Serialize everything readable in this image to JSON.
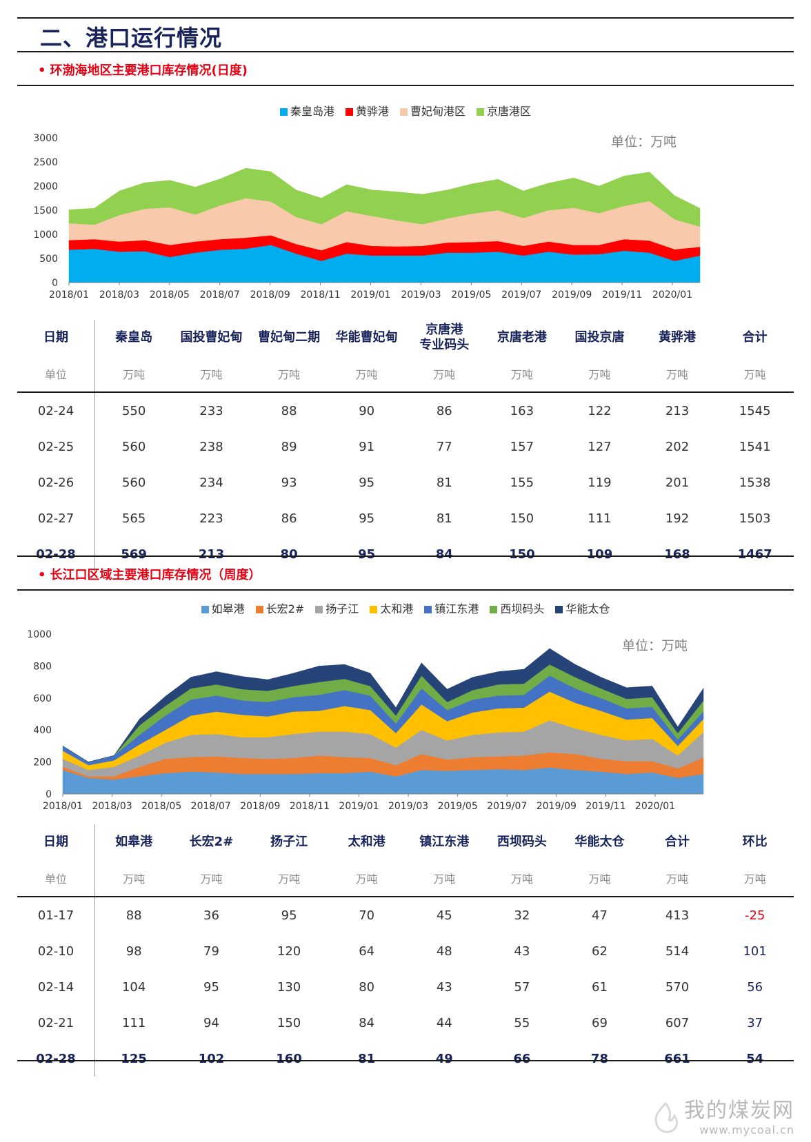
{
  "page_title": "二、港口运行情况",
  "sections": {
    "bohai": {
      "title": "环渤海地区主要港口库存情况(日度)"
    },
    "yangtze": {
      "title": "长江口区域主要港口库存情况（周度）"
    }
  },
  "colors": {
    "navy": "#17235a",
    "red": "#e60012",
    "bohai": [
      "#00aeef",
      "#ff0000",
      "#f8c9ab",
      "#92d050"
    ],
    "yangtze": [
      "#5b9bd5",
      "#ed7d31",
      "#a5a5a5",
      "#ffc000",
      "#4472c4",
      "#70ad47",
      "#264478"
    ]
  },
  "chart_data": [
    {
      "type": "area",
      "stacked": true,
      "unit_label": "单位：万吨",
      "legend": [
        "秦皇岛港",
        "黄骅港",
        "曹妃甸港区",
        "京唐港区"
      ],
      "legend_position": "top",
      "grid": false,
      "ylim": [
        0,
        3000
      ],
      "yticks": [
        "0",
        "500",
        "1000",
        "1500",
        "2000",
        "2500",
        "3000"
      ],
      "xticks": [
        "2018/01",
        "2018/03",
        "2018/05",
        "2018/07",
        "2018/09",
        "2018/11",
        "2019/01",
        "2019/03",
        "2019/05",
        "2019/07",
        "2019/09",
        "2019/11",
        "2020/01"
      ],
      "x": [
        "2018/01",
        "2018/02",
        "2018/03",
        "2018/04",
        "2018/05",
        "2018/06",
        "2018/07",
        "2018/08",
        "2018/09",
        "2018/10",
        "2018/11",
        "2018/12",
        "2019/01",
        "2019/02",
        "2019/03",
        "2019/04",
        "2019/05",
        "2019/06",
        "2019/07",
        "2019/08",
        "2019/09",
        "2019/10",
        "2019/11",
        "2019/12",
        "2020/01",
        "2020/02"
      ],
      "series": [
        {
          "name": "秦皇岛港",
          "values": [
            680,
            700,
            640,
            650,
            530,
            620,
            680,
            700,
            780,
            600,
            450,
            600,
            560,
            560,
            560,
            620,
            620,
            640,
            560,
            640,
            580,
            590,
            660,
            620,
            450,
            560
          ]
        },
        {
          "name": "黄骅港",
          "values": [
            200,
            200,
            210,
            230,
            250,
            230,
            220,
            230,
            200,
            200,
            220,
            240,
            200,
            190,
            200,
            210,
            220,
            220,
            200,
            210,
            200,
            190,
            240,
            250,
            240,
            180
          ]
        },
        {
          "name": "曹妃甸港区",
          "values": [
            350,
            300,
            550,
            650,
            780,
            560,
            700,
            820,
            700,
            560,
            540,
            640,
            620,
            540,
            450,
            500,
            590,
            640,
            580,
            650,
            770,
            660,
            690,
            820,
            620,
            420
          ]
        },
        {
          "name": "京唐港区",
          "values": [
            280,
            340,
            500,
            540,
            560,
            570,
            550,
            620,
            620,
            560,
            540,
            550,
            540,
            590,
            620,
            590,
            620,
            640,
            560,
            560,
            620,
            560,
            620,
            600,
            490,
            380
          ]
        }
      ]
    },
    {
      "type": "area",
      "stacked": true,
      "unit_label": "单位：万吨",
      "legend": [
        "如皋港",
        "长宏2#",
        "扬子江",
        "太和港",
        "镇江东港",
        "西坝码头",
        "华能太仓"
      ],
      "legend_position": "top",
      "grid": false,
      "ylim": [
        0,
        1000
      ],
      "yticks": [
        "0",
        "200",
        "400",
        "600",
        "800",
        "1000"
      ],
      "xticks": [
        "2018/01",
        "2018/03",
        "2018/05",
        "2018/07",
        "2018/09",
        "2018/11",
        "2019/01",
        "2019/03",
        "2019/05",
        "2019/07",
        "2019/09",
        "2019/11",
        "2020/01"
      ],
      "x": [
        "2018/01",
        "2018/02",
        "2018/03",
        "2018/04",
        "2018/05",
        "2018/06",
        "2018/07",
        "2018/08",
        "2018/09",
        "2018/10",
        "2018/11",
        "2018/12",
        "2019/01",
        "2019/02",
        "2019/03",
        "2019/04",
        "2019/05",
        "2019/06",
        "2019/07",
        "2019/08",
        "2019/09",
        "2019/10",
        "2019/11",
        "2019/12",
        "2020/01",
        "2020/02"
      ],
      "series": [
        {
          "name": "如皋港",
          "values": [
            150,
            100,
            90,
            110,
            130,
            140,
            135,
            125,
            125,
            125,
            130,
            130,
            140,
            110,
            150,
            145,
            150,
            155,
            150,
            165,
            150,
            140,
            125,
            135,
            100,
            125
          ]
        },
        {
          "name": "长宏2#",
          "values": [
            20,
            10,
            20,
            60,
            90,
            90,
            100,
            100,
            95,
            100,
            110,
            100,
            85,
            70,
            100,
            70,
            80,
            80,
            90,
            95,
            100,
            80,
            80,
            70,
            60,
            102
          ]
        },
        {
          "name": "扬子江",
          "values": [
            50,
            40,
            60,
            70,
            100,
            140,
            140,
            130,
            135,
            150,
            150,
            160,
            150,
            110,
            150,
            120,
            140,
            150,
            150,
            200,
            160,
            150,
            130,
            140,
            80,
            160
          ]
        },
        {
          "name": "太和港",
          "values": [
            50,
            30,
            40,
            70,
            80,
            120,
            140,
            140,
            130,
            140,
            130,
            160,
            150,
            90,
            160,
            120,
            140,
            150,
            150,
            180,
            160,
            150,
            130,
            130,
            60,
            81
          ]
        },
        {
          "name": "镇江东港",
          "values": [
            30,
            20,
            30,
            60,
            90,
            100,
            100,
            90,
            90,
            90,
            100,
            100,
            90,
            60,
            100,
            70,
            80,
            80,
            80,
            100,
            90,
            80,
            70,
            70,
            40,
            49
          ]
        },
        {
          "name": "西坝码头",
          "values": [
            0,
            0,
            0,
            60,
            60,
            70,
            70,
            70,
            70,
            70,
            80,
            70,
            60,
            50,
            80,
            50,
            60,
            70,
            70,
            70,
            70,
            60,
            60,
            60,
            40,
            66
          ]
        },
        {
          "name": "华能太仓",
          "values": [
            0,
            0,
            0,
            40,
            60,
            70,
            80,
            80,
            70,
            80,
            100,
            90,
            80,
            50,
            80,
            80,
            80,
            80,
            90,
            100,
            80,
            70,
            70,
            70,
            40,
            78
          ]
        }
      ]
    }
  ],
  "table1": {
    "headers": [
      [
        "日期"
      ],
      [
        "秦皇岛"
      ],
      [
        "国投曹妃甸"
      ],
      [
        "曹妃甸二期"
      ],
      [
        "华能曹妃甸"
      ],
      [
        "京唐港",
        "专业码头"
      ],
      [
        "京唐老港"
      ],
      [
        "国投京唐"
      ],
      [
        "黄骅港"
      ],
      [
        "合计"
      ]
    ],
    "units": [
      "单位",
      "万吨",
      "万吨",
      "万吨",
      "万吨",
      "万吨",
      "万吨",
      "万吨",
      "万吨",
      "万吨"
    ],
    "rows": [
      [
        "02-24",
        "550",
        "233",
        "88",
        "90",
        "86",
        "163",
        "122",
        "213",
        "1545"
      ],
      [
        "02-25",
        "560",
        "238",
        "89",
        "91",
        "77",
        "157",
        "127",
        "202",
        "1541"
      ],
      [
        "02-26",
        "560",
        "234",
        "93",
        "95",
        "81",
        "155",
        "119",
        "201",
        "1538"
      ],
      [
        "02-27",
        "565",
        "223",
        "86",
        "95",
        "81",
        "150",
        "111",
        "192",
        "1503"
      ],
      [
        "02-28",
        "569",
        "213",
        "80",
        "95",
        "84",
        "150",
        "109",
        "168",
        "1467"
      ]
    ]
  },
  "table2": {
    "headers": [
      [
        "日期"
      ],
      [
        "如皋港"
      ],
      [
        "长宏2#"
      ],
      [
        "扬子江"
      ],
      [
        "太和港"
      ],
      [
        "镇江东港"
      ],
      [
        "西坝码头"
      ],
      [
        "华能太仓"
      ],
      [
        "合计"
      ],
      [
        "环比"
      ]
    ],
    "units": [
      "单位",
      "万吨",
      "万吨",
      "万吨",
      "万吨",
      "万吨",
      "万吨",
      "万吨",
      "万吨",
      "万吨"
    ],
    "rows": [
      [
        "01-17",
        "88",
        "36",
        "95",
        "70",
        "45",
        "32",
        "47",
        "413",
        "-25"
      ],
      [
        "02-10",
        "98",
        "79",
        "120",
        "64",
        "48",
        "43",
        "62",
        "514",
        "101"
      ],
      [
        "02-14",
        "104",
        "95",
        "130",
        "80",
        "43",
        "57",
        "61",
        "570",
        "56"
      ],
      [
        "02-21",
        "111",
        "94",
        "150",
        "84",
        "44",
        "55",
        "69",
        "607",
        "37"
      ],
      [
        "02-28",
        "125",
        "102",
        "160",
        "81",
        "49",
        "66",
        "78",
        "661",
        "54"
      ]
    ]
  },
  "watermark": {
    "name": "我的煤炭网",
    "url": "www.mycoal.cn"
  }
}
